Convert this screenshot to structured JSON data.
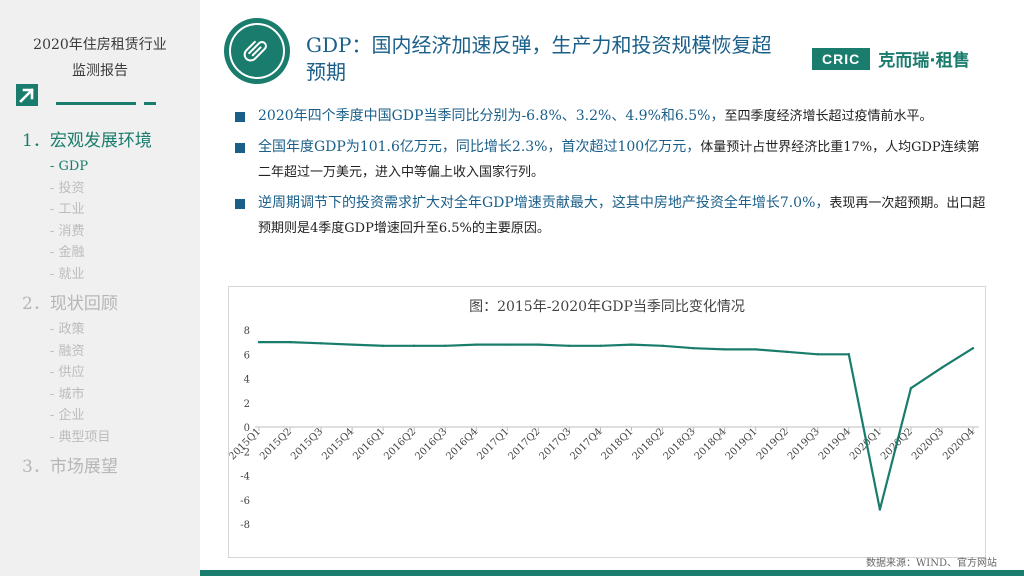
{
  "sidebar": {
    "report_title_line1": "2020年住房租赁行业",
    "report_title_line2": "监测报告",
    "sections": [
      {
        "label": "1．宏观发展环境",
        "active": true,
        "items": [
          {
            "label": "- GDP",
            "active": true
          },
          {
            "label": "- 投资",
            "active": false
          },
          {
            "label": "- 工业",
            "active": false
          },
          {
            "label": "- 消费",
            "active": false
          },
          {
            "label": "- 金融",
            "active": false
          },
          {
            "label": "- 就业",
            "active": false
          }
        ]
      },
      {
        "label": "2．现状回顾",
        "active": false,
        "items": [
          {
            "label": "- 政策",
            "active": false
          },
          {
            "label": "- 融资",
            "active": false
          },
          {
            "label": "- 供应",
            "active": false
          },
          {
            "label": "- 城市",
            "active": false
          },
          {
            "label": "- 企业",
            "active": false
          },
          {
            "label": "- 典型项目",
            "active": false
          }
        ]
      },
      {
        "label": "3．市场展望",
        "active": false,
        "items": []
      }
    ]
  },
  "header": {
    "title": "GDP：国内经济加速反弹，生产力和投资规模恢复超预期",
    "icon": "paperclip-icon",
    "brand_badge": "CRIC",
    "brand_name": "克而瑞·租售"
  },
  "bullets": [
    {
      "highlight": "2020年四个季度中国GDP当季同比分别为-6.8%、3.2%、4.9%和6.5%，",
      "body": "至四季度经济增长超过疫情前水平。"
    },
    {
      "highlight": "全国年度GDP为101.6亿万元，同比增长2.3%，首次超过100亿万元，",
      "body": "体量预计占世界经济比重17%，人均GDP连续第二年超过一万美元，进入中等偏上收入国家行列。"
    },
    {
      "highlight": "逆周期调节下的投资需求扩大对全年GDP增速贡献最大，这其中房地产投资全年增长7.0%，",
      "body": "表现再一次超预期。出口超预期则是4季度GDP增速回升至6.5%的主要原因。"
    }
  ],
  "chart_data": {
    "type": "line",
    "title": "图：2015年-2020年GDP当季同比变化情况",
    "categories": [
      "2015Q1",
      "2015Q2",
      "2015Q3",
      "2015Q4",
      "2016Q1",
      "2016Q2",
      "2016Q3",
      "2016Q4",
      "2017Q1",
      "2017Q2",
      "2017Q3",
      "2017Q4",
      "2018Q1",
      "2018Q2",
      "2018Q3",
      "2018Q4",
      "2019Q1",
      "2019Q2",
      "2019Q3",
      "2019Q4",
      "2020Q1",
      "2020Q2",
      "2020Q3",
      "2020Q4"
    ],
    "series": [
      {
        "values": [
          7.0,
          7.0,
          6.9,
          6.8,
          6.7,
          6.7,
          6.7,
          6.8,
          6.8,
          6.8,
          6.7,
          6.7,
          6.8,
          6.7,
          6.5,
          6.4,
          6.4,
          6.2,
          6.0,
          6.0,
          -6.8,
          3.2,
          4.9,
          6.5
        ]
      }
    ],
    "yticks": [
      "-8",
      "-6",
      "-4",
      "-2",
      "0",
      "2",
      "4",
      "6",
      "8"
    ],
    "ylim": [
      -8,
      8
    ],
    "grid": false,
    "line_color": "#1a7c6c"
  },
  "source": "数据来源：WIND、官方网站",
  "colors": {
    "accent": "#1a7c6c",
    "title_blue": "#1a5f8a",
    "sidebar_bg": "#f0f0f0"
  }
}
